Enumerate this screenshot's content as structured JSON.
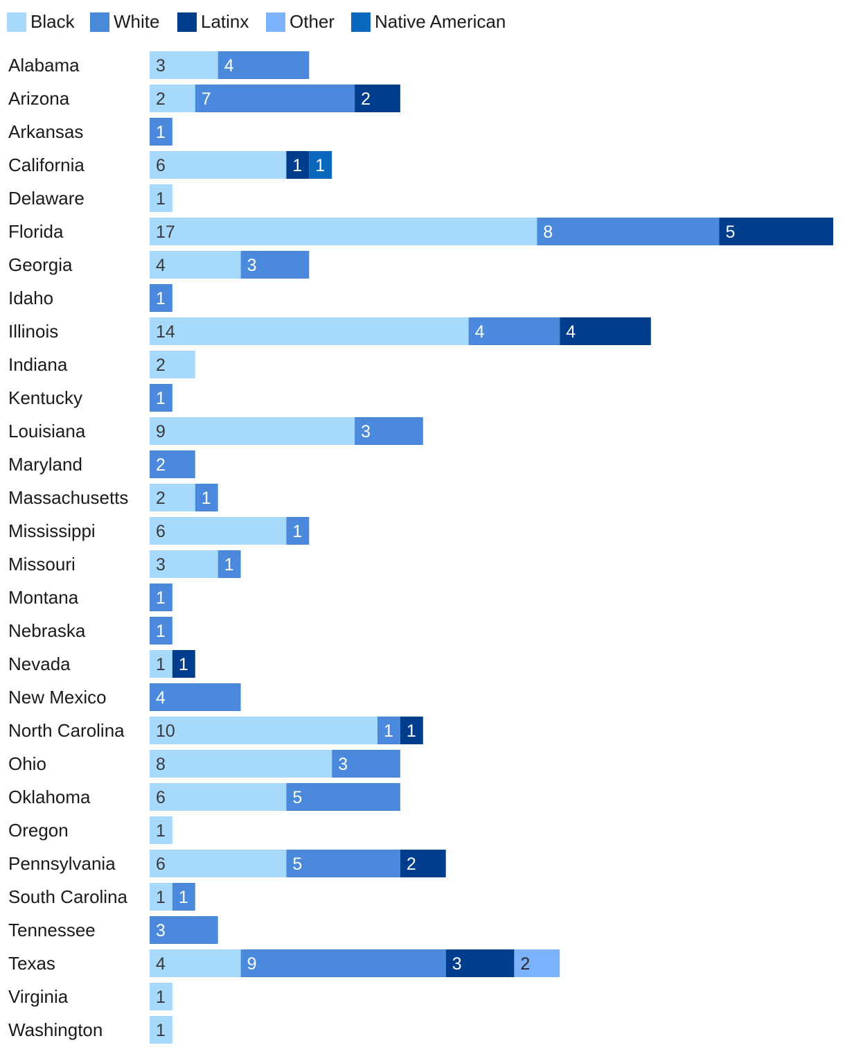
{
  "chart_data": {
    "type": "bar",
    "orientation": "horizontal",
    "stacked": true,
    "title": "",
    "xlabel": "",
    "ylabel": "",
    "grid": false,
    "legend_position": "top-left",
    "xlim": [
      0,
      30
    ],
    "categories": [
      "Alabama",
      "Arizona",
      "Arkansas",
      "California",
      "Delaware",
      "Florida",
      "Georgia",
      "Idaho",
      "Illinois",
      "Indiana",
      "Kentucky",
      "Louisiana",
      "Maryland",
      "Massachusetts",
      "Mississippi",
      "Missouri",
      "Montana",
      "Nebraska",
      "Nevada",
      "New Mexico",
      "North Carolina",
      "Ohio",
      "Oklahoma",
      "Oregon",
      "Pennsylvania",
      "South Carolina",
      "Tennessee",
      "Texas",
      "Virginia",
      "Washington"
    ],
    "series": [
      {
        "name": "Black",
        "color": "#a6d9fc",
        "label_color": "#3a3a3a",
        "values": [
          3,
          2,
          0,
          6,
          1,
          17,
          4,
          0,
          14,
          2,
          0,
          9,
          0,
          2,
          6,
          3,
          0,
          0,
          1,
          0,
          10,
          8,
          6,
          1,
          6,
          1,
          0,
          4,
          1,
          1
        ]
      },
      {
        "name": "White",
        "color": "#4a89dc",
        "label_color": "#ffffff",
        "values": [
          4,
          7,
          1,
          0,
          0,
          8,
          3,
          1,
          4,
          0,
          1,
          3,
          2,
          1,
          1,
          1,
          1,
          1,
          0,
          4,
          1,
          3,
          5,
          0,
          5,
          1,
          3,
          9,
          0,
          0
        ]
      },
      {
        "name": "Latinx",
        "color": "#003d8c",
        "label_color": "#ffffff",
        "values": [
          0,
          2,
          0,
          1,
          0,
          5,
          0,
          0,
          4,
          0,
          0,
          0,
          0,
          0,
          0,
          0,
          0,
          0,
          1,
          0,
          1,
          0,
          0,
          0,
          2,
          0,
          0,
          3,
          0,
          0
        ]
      },
      {
        "name": "Other",
        "color": "#7cb2fb",
        "label_color": "#2a2a2a",
        "values": [
          0,
          0,
          0,
          0,
          0,
          0,
          0,
          0,
          0,
          0,
          0,
          0,
          0,
          0,
          0,
          0,
          0,
          0,
          0,
          0,
          0,
          0,
          0,
          0,
          0,
          0,
          0,
          2,
          0,
          0
        ]
      },
      {
        "name": "Native American",
        "color": "#0a68bc",
        "label_color": "#ffffff",
        "values": [
          0,
          0,
          0,
          1,
          0,
          0,
          0,
          0,
          0,
          0,
          0,
          0,
          0,
          0,
          0,
          0,
          0,
          0,
          0,
          0,
          0,
          0,
          0,
          0,
          0,
          0,
          0,
          0,
          0,
          0
        ]
      }
    ]
  }
}
